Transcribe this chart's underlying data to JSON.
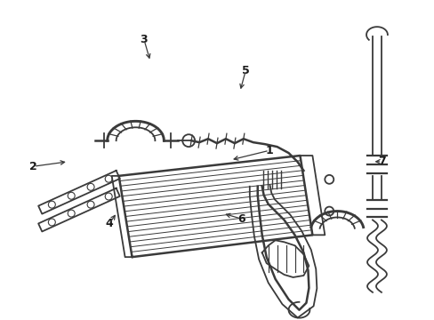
{
  "bg_color": "#ffffff",
  "line_color": "#3a3a3a",
  "lw": 1.3,
  "labels": {
    "1": {
      "text": [
        0.62,
        0.47
      ],
      "arrow_to": [
        0.53,
        0.5
      ]
    },
    "2": {
      "text": [
        0.075,
        0.52
      ],
      "arrow_to": [
        0.155,
        0.505
      ]
    },
    "3": {
      "text": [
        0.33,
        0.12
      ],
      "arrow_to": [
        0.345,
        0.19
      ]
    },
    "4": {
      "text": [
        0.25,
        0.7
      ],
      "arrow_to": [
        0.268,
        0.665
      ]
    },
    "5": {
      "text": [
        0.565,
        0.22
      ],
      "arrow_to": [
        0.552,
        0.285
      ]
    },
    "6": {
      "text": [
        0.555,
        0.685
      ],
      "arrow_to": [
        0.512,
        0.668
      ]
    },
    "7": {
      "text": [
        0.88,
        0.505
      ],
      "arrow_to": [
        0.858,
        0.505
      ]
    }
  }
}
